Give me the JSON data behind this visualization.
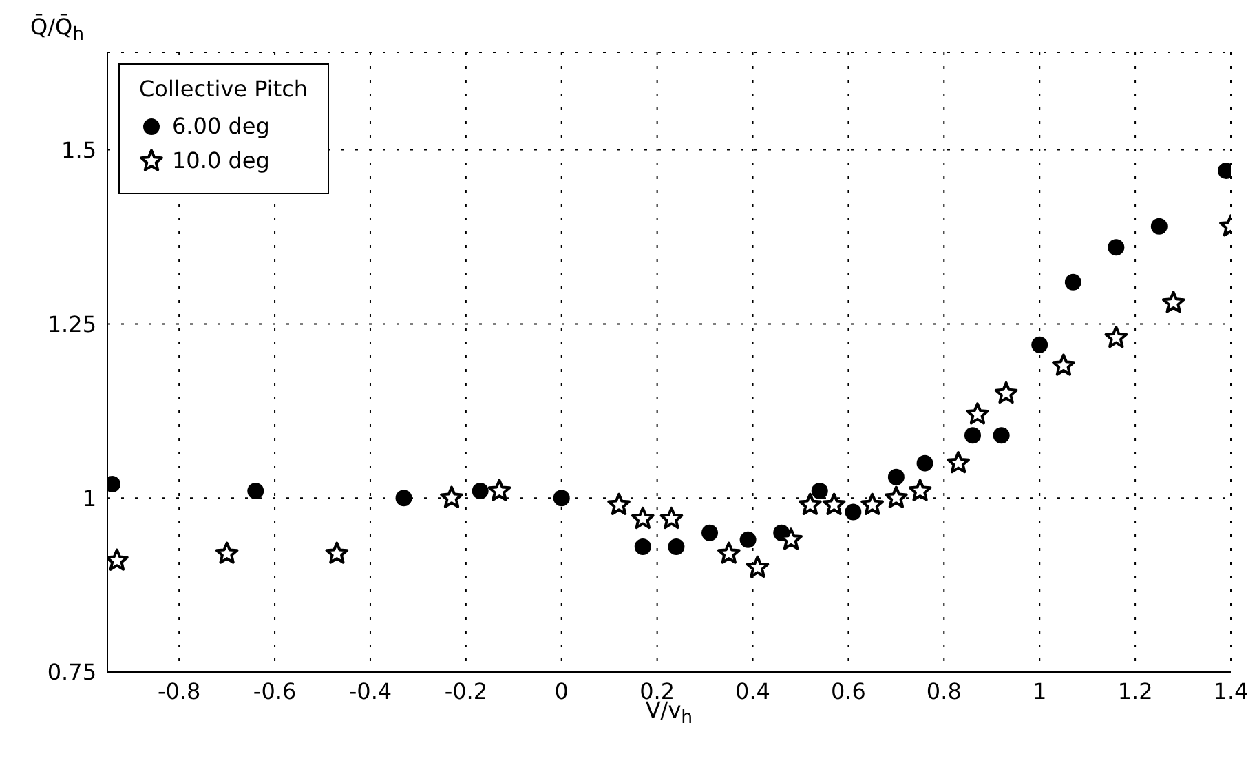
{
  "chart_data": {
    "type": "scatter",
    "xlabel": "V/v$_{h}$",
    "ylabel": "Q̄/Q̄$_{h}$",
    "legend_title": "Collective Pitch",
    "legend": "top left",
    "grid": true,
    "line_style": "dotted",
    "xlim": [
      -0.95,
      1.4
    ],
    "xticks": [
      -0.8,
      -0.6,
      -0.4,
      -0.2,
      0,
      0.2,
      0.4,
      0.6,
      0.8,
      1,
      1.2,
      1.4
    ],
    "ylim": [
      0.75,
      1.64
    ],
    "yticks": [
      0.75,
      1,
      1.25,
      1.5
    ],
    "series": [
      {
        "name": "6.00 deg",
        "color": "#000000",
        "marker": "circle",
        "x": [
          -0.94,
          -0.64,
          -0.33,
          -0.17,
          0,
          0.17,
          0.24,
          0.31,
          0.39,
          0.46,
          0.54,
          0.61,
          0.7,
          0.76,
          0.86,
          0.92,
          1,
          1.07,
          1.16,
          1.25,
          1.39
        ],
        "values": [
          1.02,
          1.01,
          1.0,
          1.01,
          1.0,
          0.93,
          0.93,
          0.95,
          0.94,
          0.95,
          1.01,
          0.98,
          1.03,
          1.05,
          1.09,
          1.09,
          1.22,
          1.31,
          1.36,
          1.39,
          1.47
        ]
      },
      {
        "name": "10.0 deg",
        "color": "#000000",
        "marker": "star",
        "x": [
          -0.93,
          -0.7,
          -0.47,
          -0.23,
          -0.13,
          0.12,
          0.17,
          0.23,
          0.35,
          0.41,
          0.48,
          0.52,
          0.57,
          0.65,
          0.7,
          0.75,
          0.83,
          0.87,
          0.93,
          1.05,
          1.16,
          1.28,
          1.4
        ],
        "values": [
          0.91,
          0.92,
          0.92,
          1.0,
          1.01,
          0.99,
          0.97,
          0.97,
          0.92,
          0.9,
          0.94,
          0.99,
          0.99,
          0.99,
          1.0,
          1.01,
          1.05,
          1.12,
          1.15,
          1.19,
          1.23,
          1.28,
          1.39
        ]
      }
    ]
  }
}
